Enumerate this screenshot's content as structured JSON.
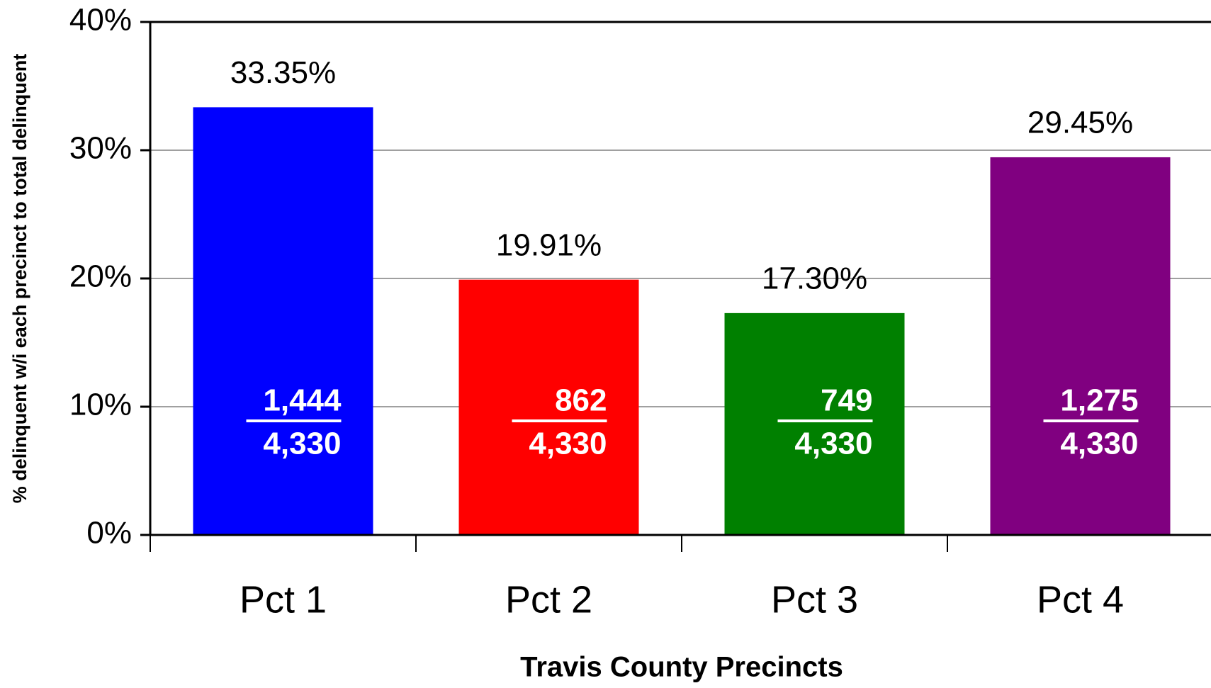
{
  "chart_data": {
    "type": "bar",
    "y_axis_label": "% delinquent w/i each precinct to total delinquent",
    "x_axis_label": "Travis County Precincts",
    "categories": [
      "Pct 1",
      "Pct 2",
      "Pct 3",
      "Pct 4"
    ],
    "values": [
      33.35,
      19.91,
      17.3,
      29.45
    ],
    "value_labels": [
      "33.35%",
      "19.91%",
      "17.30%",
      "29.45%"
    ],
    "colors": [
      "#0000ff",
      "#ff0000",
      "#008000",
      "#800080"
    ],
    "fractions": [
      {
        "numerator": "1,444",
        "denominator": "4,330"
      },
      {
        "numerator": "862",
        "denominator": "4,330"
      },
      {
        "numerator": "749",
        "denominator": "4,330"
      },
      {
        "numerator": "1,275",
        "denominator": "4,330"
      }
    ],
    "ylim": [
      0,
      40
    ],
    "yticks": [
      {
        "value": 0,
        "label": "0%"
      },
      {
        "value": 10,
        "label": "10%"
      },
      {
        "value": 20,
        "label": "20%"
      },
      {
        "value": 30,
        "label": "30%"
      },
      {
        "value": 40,
        "label": "40%"
      }
    ],
    "grid": true
  }
}
